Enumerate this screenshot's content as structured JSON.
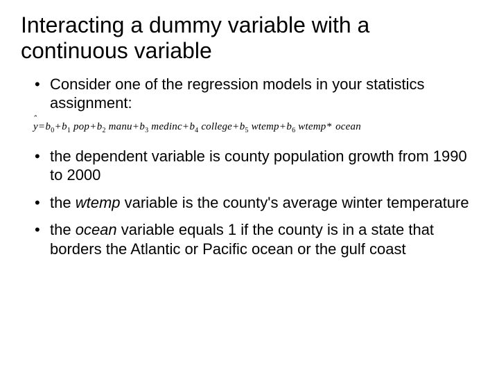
{
  "title": "Interacting a dummy variable with a continuous variable",
  "bullets": {
    "b1": "Consider one of the regression models in your statistics assignment:",
    "b2": "the dependent variable is county population growth from 1990 to 2000",
    "b3_pre": "the ",
    "b3_var": "wtemp",
    "b3_post": " variable is the county's average winter temperature",
    "b4_pre": "the ",
    "b4_var": "ocean",
    "b4_post": " variable equals 1 if the county is in a state that borders the Atlantic or Pacific ocean or the gulf coast"
  },
  "equation": {
    "yhat": "y",
    "eq": "=",
    "plus": "+",
    "star": "*",
    "terms": {
      "b0": "b",
      "s0": "0",
      "b1": "b",
      "s1": "1",
      "v1": "pop",
      "b2": "b",
      "s2": "2",
      "v2": "manu",
      "b3": "b",
      "s3": "3",
      "v3": "medinc",
      "b4": "b",
      "s4": "4",
      "v4": "college",
      "b5": "b",
      "s5": "5",
      "v5": "wtemp",
      "b6": "b",
      "s6": "6",
      "v6": "wtemp",
      "v7": "ocean"
    }
  },
  "style": {
    "background": "#ffffff",
    "text_color": "#000000",
    "title_fontsize": 32,
    "bullet_fontsize": 22,
    "equation_fontsize": 15
  }
}
